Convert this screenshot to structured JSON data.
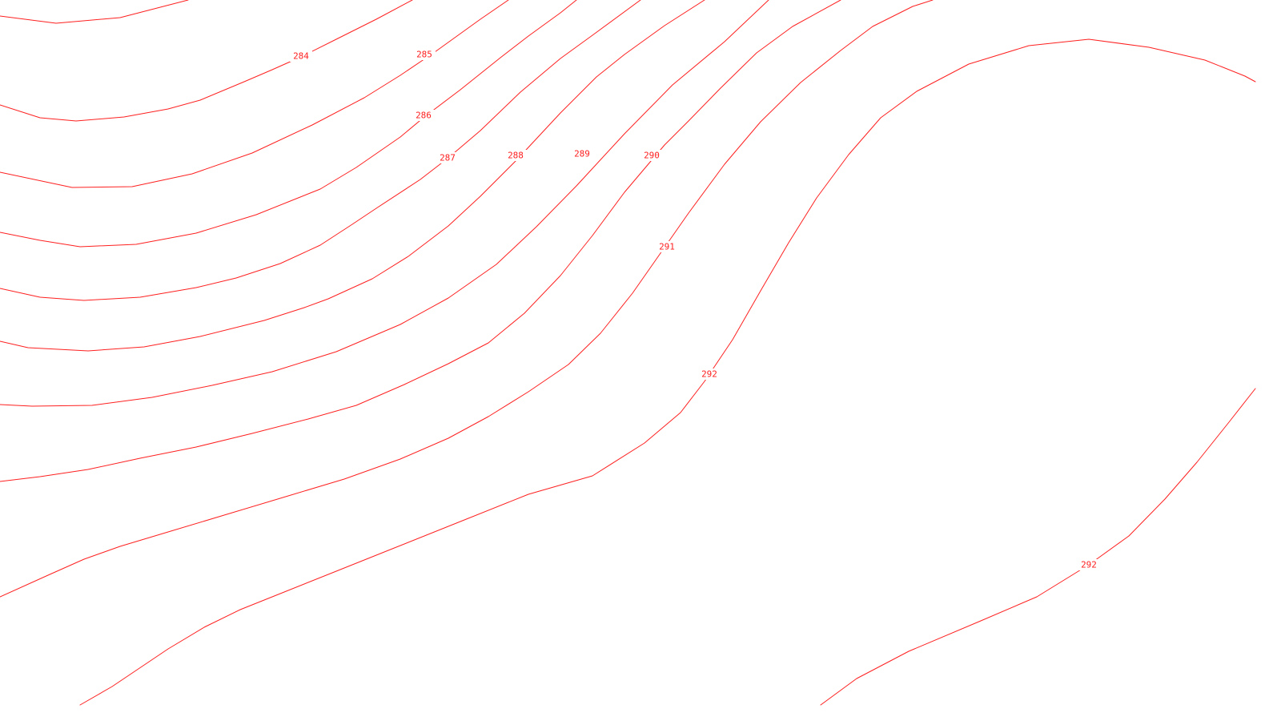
{
  "map": {
    "background_color": "#ffffff",
    "contour_color": "#ff2020"
  },
  "contours": [
    {
      "level": "284",
      "label": "284"
    },
    {
      "level": "285",
      "label": "285"
    },
    {
      "level": "286",
      "label": "286"
    },
    {
      "level": "287",
      "label": "287"
    },
    {
      "level": "288",
      "label": "288"
    },
    {
      "level": "289",
      "label": "289"
    },
    {
      "level": "290",
      "label": "290"
    },
    {
      "level": "291",
      "label": "291"
    },
    {
      "level": "292",
      "label": "292"
    },
    {
      "level": "292",
      "label": "292"
    }
  ]
}
